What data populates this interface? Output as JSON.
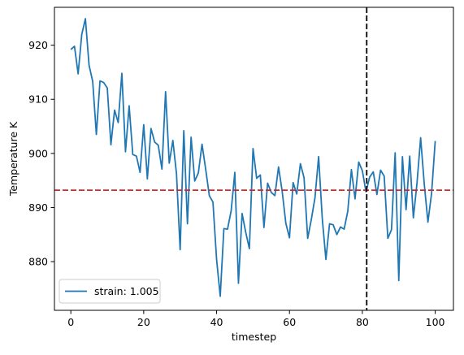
{
  "chart_data": {
    "type": "line",
    "xlabel": "timestep",
    "ylabel": "Temperature K",
    "xlim": [
      -4.5,
      105
    ],
    "ylim": [
      871,
      927
    ],
    "xticks": [
      0,
      20,
      40,
      60,
      80,
      100
    ],
    "yticks": [
      880,
      890,
      900,
      910,
      920
    ],
    "grid": false,
    "legend_placement": "lower left",
    "series": [
      {
        "name": "strain: 1.005",
        "color": "#1f77b4",
        "x": [
          0,
          1,
          2,
          3,
          4,
          5,
          6,
          7,
          8,
          9,
          10,
          11,
          12,
          13,
          14,
          15,
          16,
          17,
          18,
          19,
          20,
          21,
          22,
          23,
          24,
          25,
          26,
          27,
          28,
          29,
          30,
          31,
          32,
          33,
          34,
          35,
          36,
          37,
          38,
          39,
          40,
          41,
          42,
          43,
          44,
          45,
          46,
          47,
          48,
          49,
          50,
          51,
          52,
          53,
          54,
          55,
          56,
          57,
          58,
          59,
          60,
          61,
          62,
          63,
          64,
          65,
          66,
          67,
          68,
          69,
          70,
          71,
          72,
          73,
          74,
          75,
          76,
          77,
          78,
          79,
          80,
          81,
          82,
          83,
          84,
          85,
          86,
          87,
          88,
          89,
          90,
          91,
          92,
          93,
          94,
          95,
          96,
          97,
          98,
          99,
          100
        ],
        "values": [
          919.2,
          919.8,
          914.7,
          922.0,
          924.9,
          916.3,
          913.3,
          903.5,
          913.4,
          913.1,
          912.1,
          901.6,
          908.0,
          905.7,
          914.8,
          900.3,
          908.8,
          899.8,
          899.5,
          896.5,
          905.3,
          895.3,
          904.6,
          902.1,
          901.5,
          897.1,
          911.4,
          898.2,
          902.4,
          896.2,
          882.2,
          904.2,
          887.0,
          903.0,
          894.9,
          896.4,
          901.7,
          897.1,
          892.2,
          891.0,
          880.4,
          873.6,
          886.1,
          886.0,
          889.4,
          896.5,
          876.0,
          888.9,
          885.4,
          882.4,
          900.9,
          895.4,
          896.0,
          886.3,
          894.5,
          892.8,
          892.2,
          897.5,
          893.0,
          887.1,
          884.4,
          894.6,
          892.5,
          898.1,
          895.5,
          884.3,
          887.8,
          891.8,
          899.4,
          888.0,
          880.4,
          887.0,
          886.8,
          885.0,
          886.4,
          886.0,
          889.3,
          897.0,
          891.6,
          898.4,
          896.8,
          892.9,
          895.6,
          896.6,
          892.4,
          896.9,
          895.8,
          884.3,
          885.9,
          900.1,
          876.5,
          899.4,
          889.6,
          899.5,
          888.1,
          894.5,
          902.9,
          894.3,
          887.3,
          892.6,
          902.3
        ]
      }
    ],
    "hlines": [
      {
        "y": 893.2,
        "color": "#d62728",
        "style": "dashed"
      }
    ],
    "vlines": [
      {
        "x": 81.2,
        "color": "#000000",
        "style": "dashed"
      }
    ]
  }
}
